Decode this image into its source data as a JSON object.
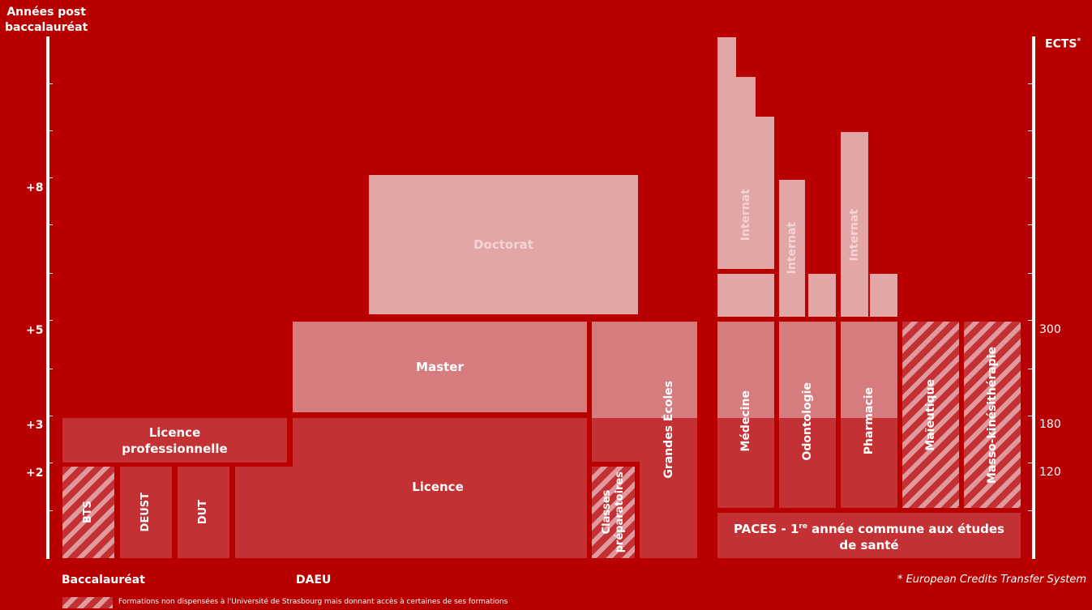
{
  "left_axis": {
    "title_line1": "Années post",
    "title_line2": "baccalauréat",
    "ticks": [
      "+8",
      "+5",
      "+3",
      "+2"
    ]
  },
  "right_axis": {
    "title": "ECTS",
    "title_marker": "*",
    "ticks": [
      "300",
      "180",
      "120"
    ]
  },
  "blocks": {
    "bts": "BTS",
    "deust": "DEUST",
    "dut": "DUT",
    "licence": "Licence",
    "licence_pro_line1": "Licence",
    "licence_pro_line2": "professionnelle",
    "master": "Master",
    "doctorat": "Doctorat",
    "classes_prep_line1": "Classes",
    "classes_prep_line2": "préparatoires",
    "grandes_ecoles": "Grandes Écoles",
    "medecine": "Médecine",
    "odontologie": "Odontologie",
    "pharmacie": "Pharmacie",
    "maieutique": "Maïeutique",
    "masso": "Masso-kinésithérapie",
    "internat": "Internat",
    "paces_prefix": "PACES - 1",
    "paces_sup": "re",
    "paces_suffix": " année commune aux études",
    "paces_line2": "de santé"
  },
  "bottom": {
    "baccalaureat": "Baccalauréat",
    "daeu": "DAEU",
    "footnote": "* European Credits Transfer System",
    "legend": "Formations non dispensées à l'Université de Strasbourg mais donnant accès à certaines de ses formations"
  },
  "colors": {
    "background": "#b80000",
    "dark": "#c33134",
    "mid": "#d67c7f",
    "light": "#e3a6a7"
  }
}
